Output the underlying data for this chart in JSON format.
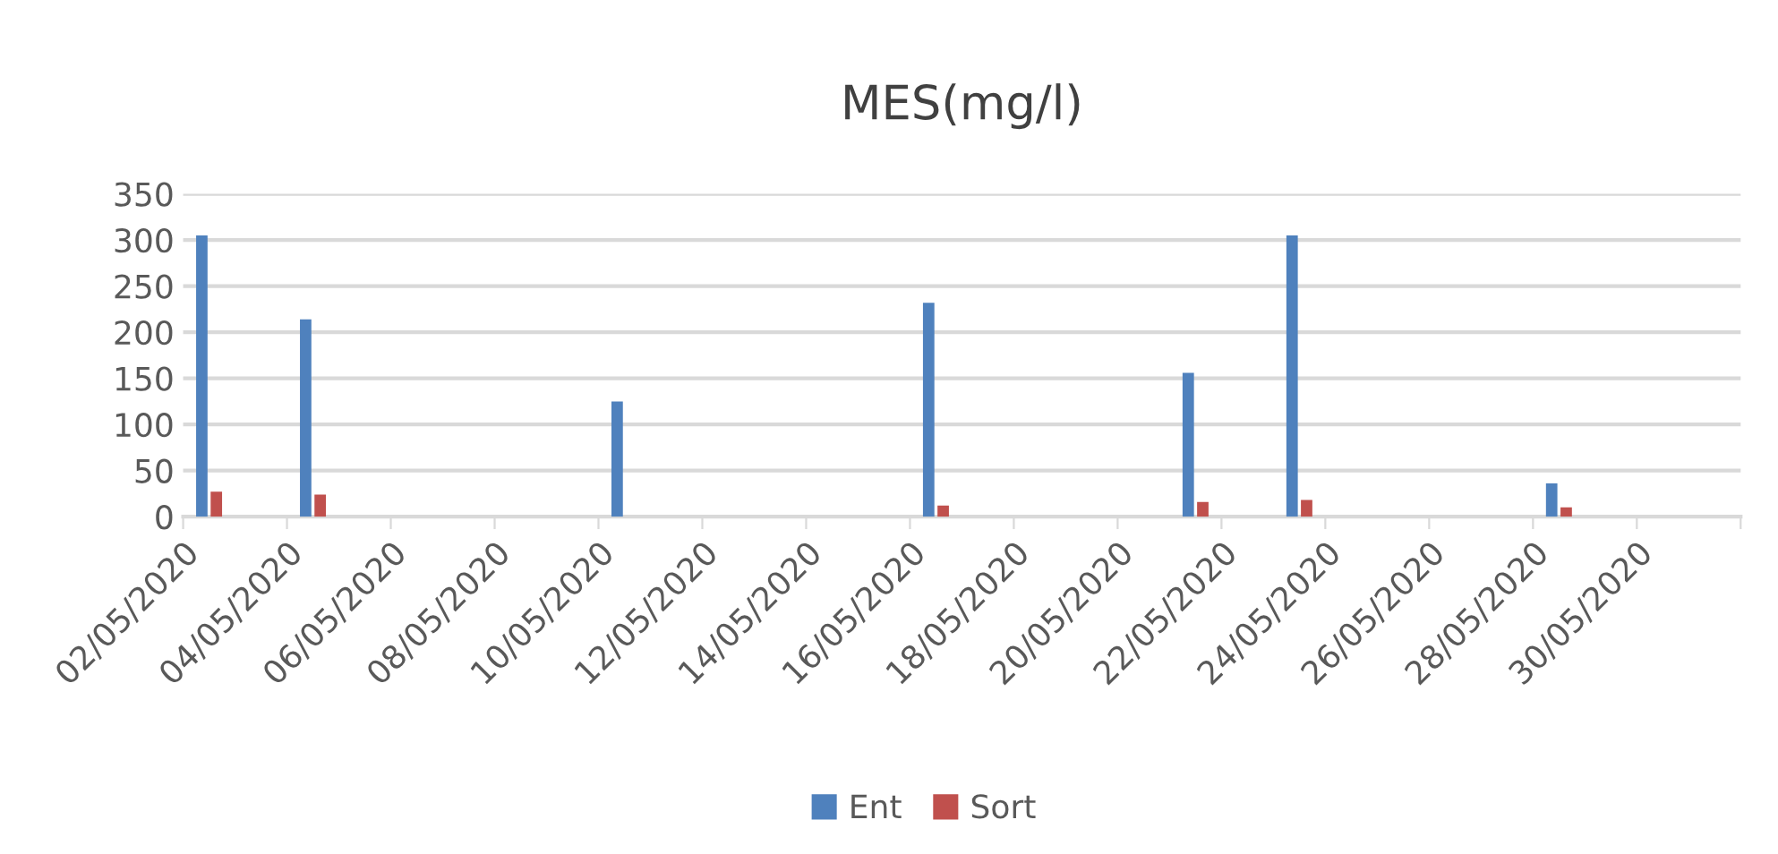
{
  "chart_data": {
    "type": "bar",
    "title": "MES(mg/l)",
    "x": [
      "2020-05-02",
      "2020-05-04",
      "2020-05-10",
      "2020-05-16",
      "2020-05-21",
      "2020-05-23",
      "2020-05-28"
    ],
    "series": [
      {
        "name": "Ent",
        "color": "#4f81bd",
        "values": [
          305,
          214,
          125,
          232,
          156,
          305,
          36
        ]
      },
      {
        "name": "Sort",
        "color": "#c0504d",
        "values": [
          27,
          24,
          null,
          12,
          16,
          18,
          10
        ]
      }
    ],
    "xlim": [
      "2020-05-02",
      "2020-06-01"
    ],
    "xticks": [
      {
        "value": "2020-05-02",
        "label": "02/05/2020"
      },
      {
        "value": "2020-05-04",
        "label": "04/05/2020"
      },
      {
        "value": "2020-05-06",
        "label": "06/05/2020"
      },
      {
        "value": "2020-05-08",
        "label": "08/05/2020"
      },
      {
        "value": "2020-05-10",
        "label": "10/05/2020"
      },
      {
        "value": "2020-05-12",
        "label": "12/05/2020"
      },
      {
        "value": "2020-05-14",
        "label": "14/05/2020"
      },
      {
        "value": "2020-05-16",
        "label": "16/05/2020"
      },
      {
        "value": "2020-05-18",
        "label": "18/05/2020"
      },
      {
        "value": "2020-05-20",
        "label": "20/05/2020"
      },
      {
        "value": "2020-05-22",
        "label": "22/05/2020"
      },
      {
        "value": "2020-05-24",
        "label": "24/05/2020"
      },
      {
        "value": "2020-05-26",
        "label": "26/05/2020"
      },
      {
        "value": "2020-05-28",
        "label": "28/05/2020"
      },
      {
        "value": "2020-05-30",
        "label": "30/05/2020"
      },
      {
        "value": "2020-06-01",
        "label": null
      }
    ],
    "ylim": [
      0,
      350
    ],
    "yticks": [
      0,
      50,
      100,
      150,
      200,
      250,
      300,
      350
    ],
    "grid": "y",
    "legend": "bottom"
  }
}
